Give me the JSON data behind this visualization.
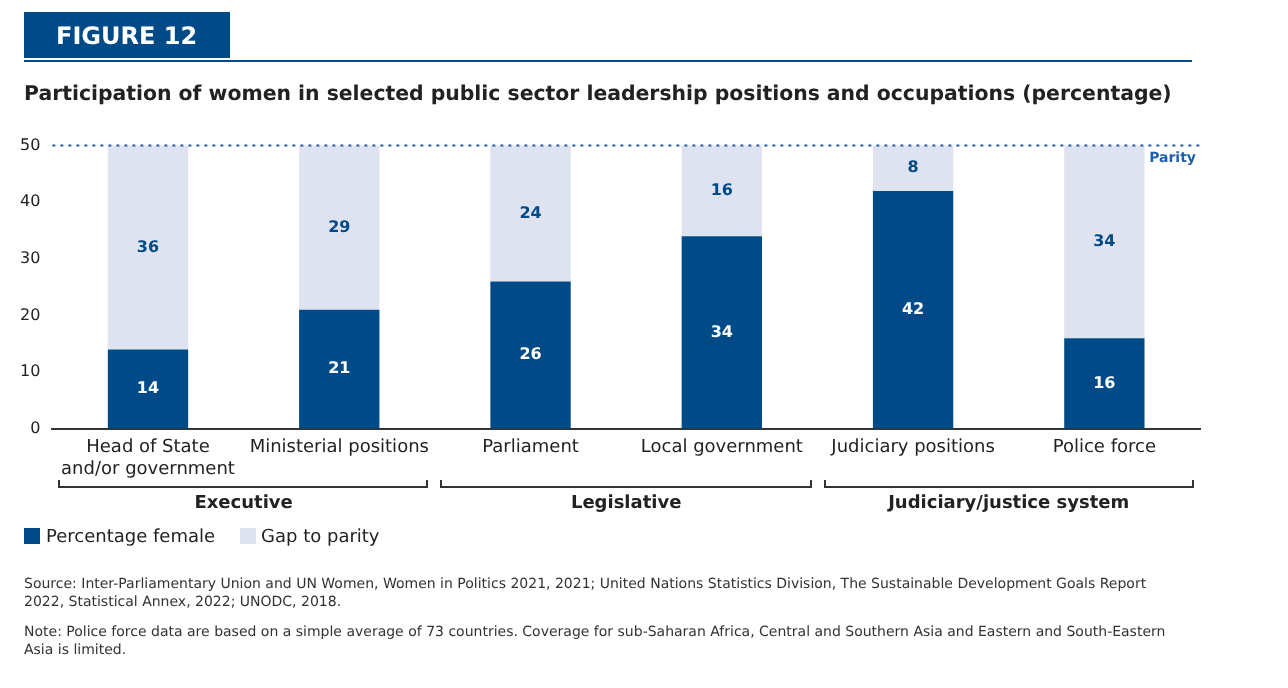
{
  "chart_data": {
    "type": "bar",
    "title": "Participation of women in selected public sector leadership positions and occupations (percentage)",
    "categories": [
      "Head of State and/or government",
      "Ministerial positions",
      "Parliament",
      "Local government",
      "Judiciary positions",
      "Police force"
    ],
    "series": [
      {
        "name": "Percentage female",
        "color": "#004b87",
        "values": [
          14,
          21,
          26,
          34,
          42,
          16
        ]
      },
      {
        "name": "Gap to parity",
        "color": "#dfe3f0",
        "values": [
          36,
          29,
          24,
          16,
          8,
          34
        ]
      }
    ],
    "stacked": true,
    "data_labels": true,
    "grid": false,
    "legend": "bottom left",
    "ylim": [
      0,
      50
    ],
    "yticks": [
      0,
      10,
      20,
      30,
      40,
      50
    ],
    "ref_lines": [
      {
        "axis": "y",
        "value": 50,
        "label": "Parity",
        "color": "#1f5fa8",
        "line_style": "dotted"
      }
    ],
    "annotations": [
      "FIGURE 12",
      "Executive",
      "Legislative",
      "Judiciary/justice system",
      "Source: Inter-Parliamentary Union and UN Women, Women in Politics 2021, 2021; United Nations Statistics Division, The Sustainable Development Goals Report 2022, Statistical Annex, 2022; UNODC, 2018.",
      "Note: Police force data are based on a simple average of 73 countries. Coverage for sub-Saharan Africa, Central and Southern Asia and Eastern and South-Eastern Asia is limited."
    ]
  }
}
